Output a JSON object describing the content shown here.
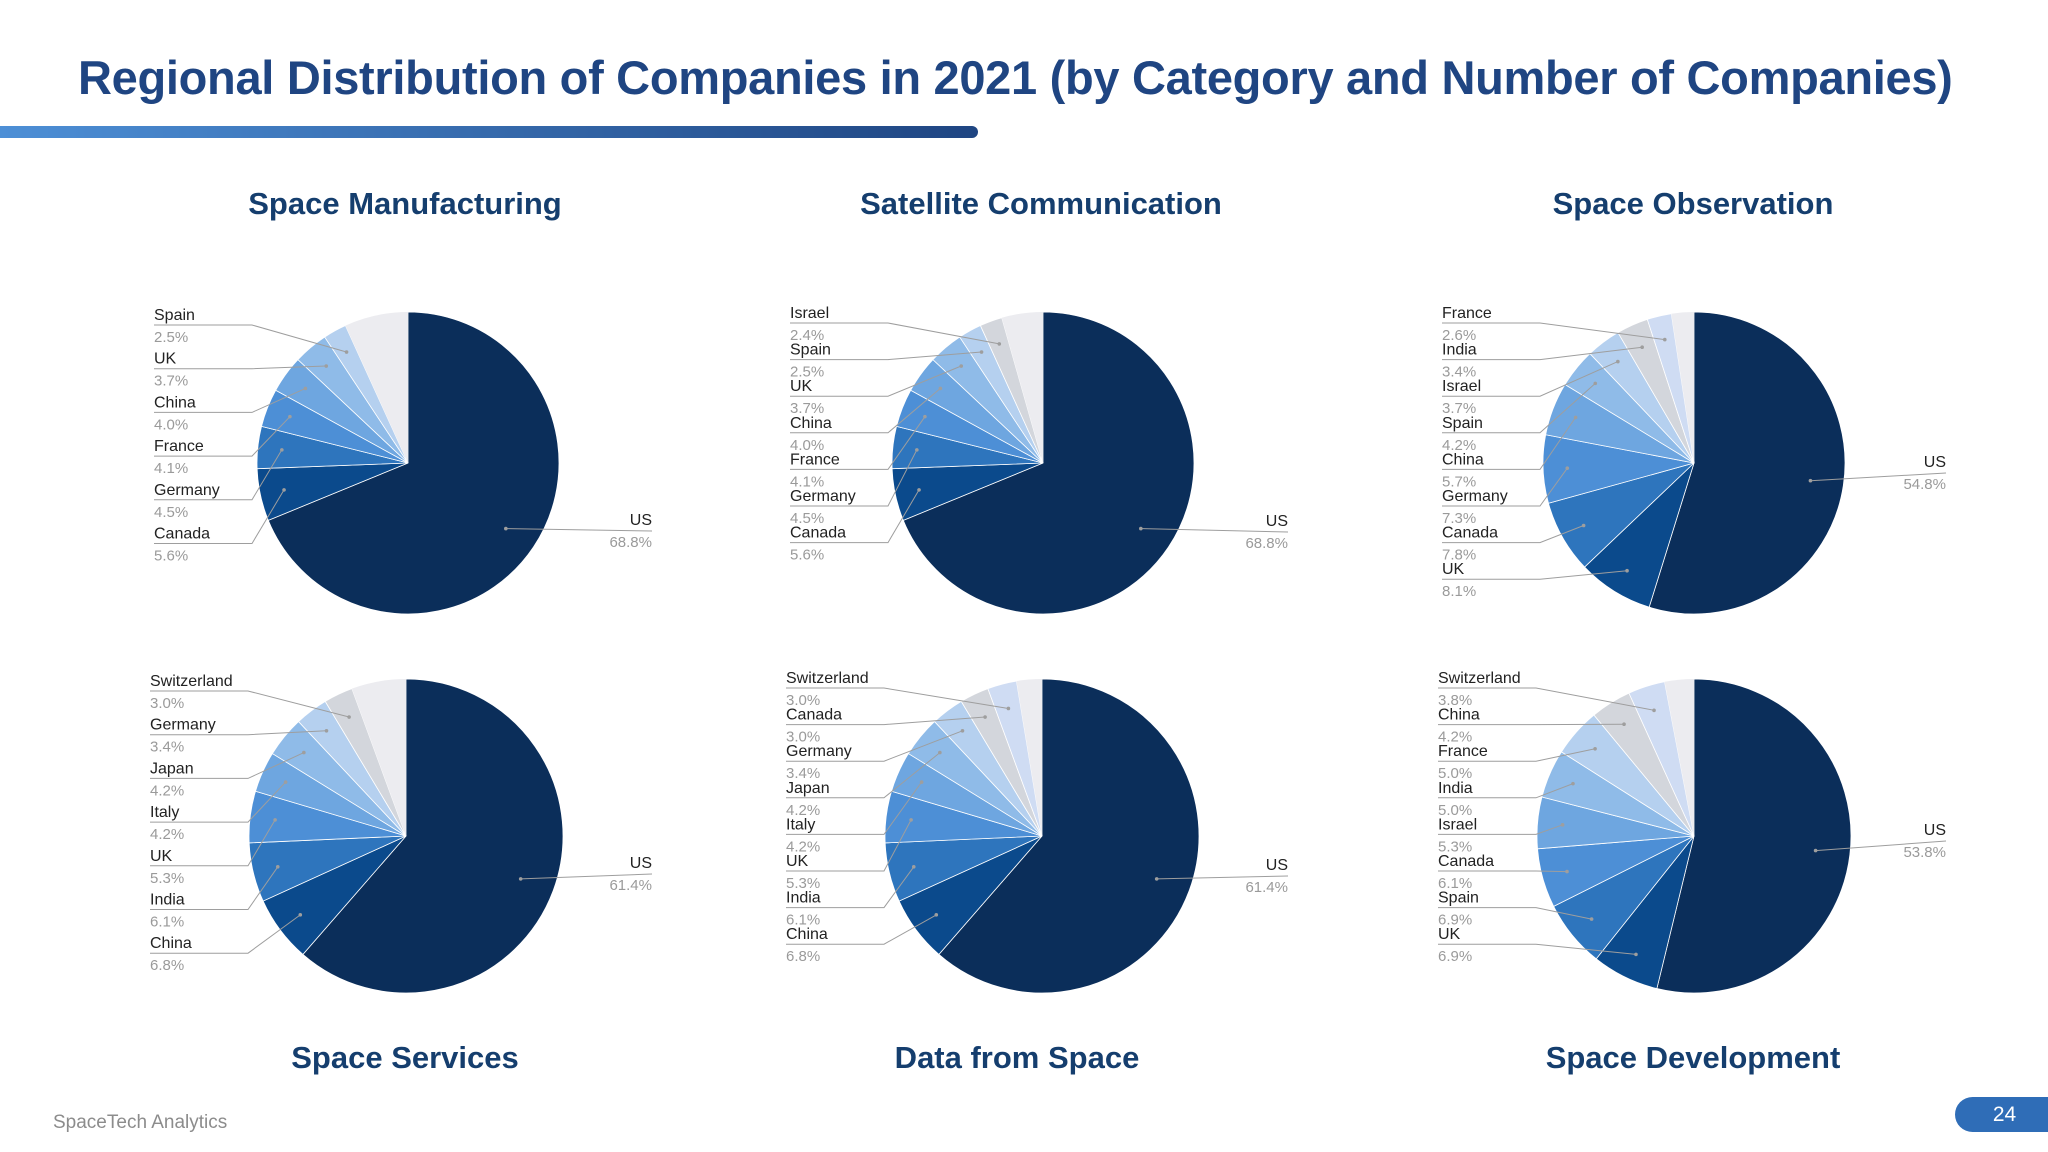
{
  "page": {
    "title": "Regional Distribution of Companies in 2021 (by Category and Number of Companies)",
    "footer": "SpaceTech Analytics",
    "page_number": "24"
  },
  "colors": {
    "title": "#1f4582",
    "slices": [
      "#0b2e5a",
      "#0b4a8c",
      "#2e75bd",
      "#4d8fd6",
      "#6ea6e0",
      "#8fbbe8",
      "#b5d0ef",
      "#d3d6dc",
      "#cfdcf3",
      "#a7c5f2",
      "#ececf0"
    ]
  },
  "chart_data": [
    {
      "type": "pie",
      "title": "Space Manufacturing",
      "labels": [
        "US",
        "Canada",
        "Germany",
        "France",
        "China",
        "UK",
        "Spain"
      ],
      "values": [
        68.8,
        5.6,
        4.5,
        4.1,
        4.0,
        3.7,
        2.5
      ],
      "value_labels": [
        "68.8%",
        "5.6%",
        "4.5%",
        "4.1%",
        "4.0%",
        "3.7%",
        "2.5%"
      ]
    },
    {
      "type": "pie",
      "title": "Satellite Communication",
      "labels": [
        "US",
        "Canada",
        "Germany",
        "France",
        "China",
        "UK",
        "Spain",
        "Israel"
      ],
      "values": [
        68.8,
        5.6,
        4.5,
        4.1,
        4.0,
        3.7,
        2.5,
        2.4
      ],
      "value_labels": [
        "68.8%",
        "5.6%",
        "4.5%",
        "4.1%",
        "4.0%",
        "3.7%",
        "2.5%",
        "2.4%"
      ]
    },
    {
      "type": "pie",
      "title": "Space Observation",
      "labels": [
        "US",
        "UK",
        "Canada",
        "Germany",
        "China",
        "Spain",
        "Israel",
        "India",
        "France"
      ],
      "values": [
        54.8,
        8.1,
        7.8,
        7.3,
        5.7,
        4.2,
        3.7,
        3.4,
        2.6
      ],
      "value_labels": [
        "54.8%",
        "8.1%",
        "7.8%",
        "7.3%",
        "5.7%",
        "4.2%",
        "3.7%",
        "3.4%",
        "2.6%"
      ]
    },
    {
      "type": "pie",
      "title": "Space Services",
      "labels": [
        "US",
        "China",
        "India",
        "UK",
        "Italy",
        "Japan",
        "Germany",
        "Switzerland"
      ],
      "values": [
        61.4,
        6.8,
        6.1,
        5.3,
        4.2,
        4.2,
        3.4,
        3.0
      ],
      "value_labels": [
        "61.4%",
        "6.8%",
        "6.1%",
        "5.3%",
        "4.2%",
        "4.2%",
        "3.4%",
        "3.0%"
      ]
    },
    {
      "type": "pie",
      "title": "Data from Space",
      "labels": [
        "US",
        "China",
        "India",
        "UK",
        "Italy",
        "Japan",
        "Germany",
        "Canada",
        "Switzerland"
      ],
      "values": [
        61.4,
        6.8,
        6.1,
        5.3,
        4.2,
        4.2,
        3.4,
        3.0,
        3.0
      ],
      "value_labels": [
        "61.4%",
        "6.8%",
        "6.1%",
        "5.3%",
        "4.2%",
        "4.2%",
        "3.4%",
        "3.0%",
        "3.0%"
      ]
    },
    {
      "type": "pie",
      "title": "Space Development",
      "labels": [
        "US",
        "UK",
        "Spain",
        "Canada",
        "Israel",
        "India",
        "France",
        "China",
        "Switzerland"
      ],
      "values": [
        53.8,
        6.9,
        6.9,
        6.1,
        5.3,
        5.0,
        5.0,
        4.2,
        3.8
      ],
      "value_labels": [
        "53.8%",
        "6.9%",
        "6.9%",
        "6.1%",
        "5.3%",
        "5.0%",
        "5.0%",
        "4.2%",
        "3.8%"
      ]
    }
  ]
}
